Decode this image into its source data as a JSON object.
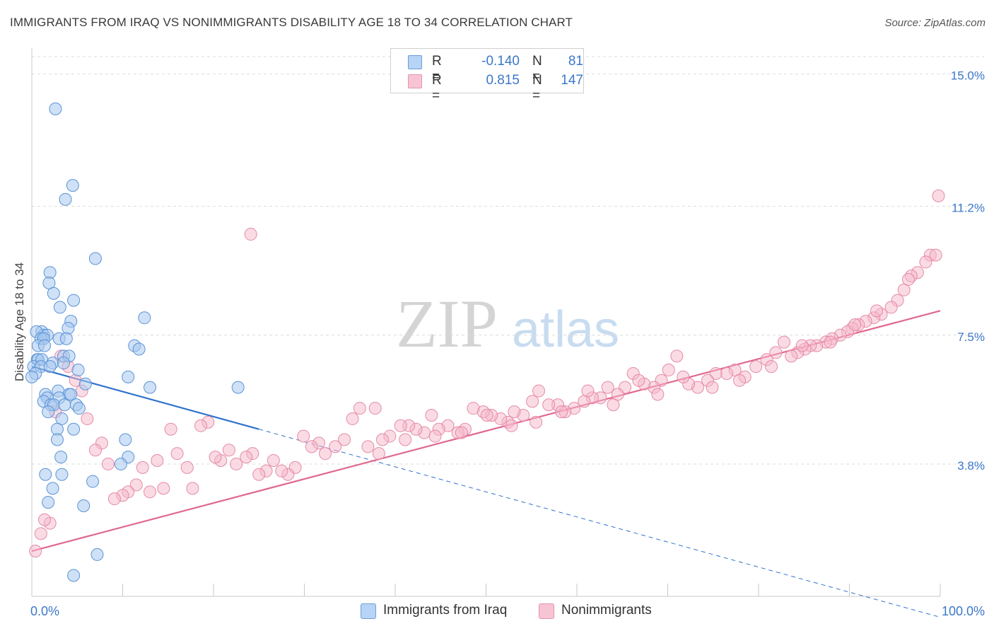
{
  "header": {
    "title": "IMMIGRANTS FROM IRAQ VS NONIMMIGRANTS DISABILITY AGE 18 TO 34 CORRELATION CHART",
    "source": "Source: ZipAtlas.com"
  },
  "colors": {
    "blue_fill": "#a8c8ef",
    "blue_stroke": "#5b93d6",
    "blue_line": "#2f72cc",
    "pink_fill": "#f5b8ca",
    "pink_stroke": "#e58aa8",
    "pink_line": "#e06890",
    "axis_label": "#3b78c8",
    "grid": "#dcdcdc"
  },
  "legend": {
    "rows": [
      {
        "r_label": "R =",
        "r_value": "-0.140",
        "n_label": "N =",
        "n_value": "81"
      },
      {
        "r_label": "R =",
        "r_value": "0.815",
        "n_label": "N =",
        "n_value": "147"
      }
    ]
  },
  "bottom_legend": {
    "items": [
      {
        "label": "Immigrants from Iraq"
      },
      {
        "label": "Nonimmigrants"
      }
    ]
  },
  "watermark": {
    "zip": "ZIP",
    "atlas": "atlas"
  },
  "chart_data": {
    "type": "scatter",
    "ylabel": "Disability Age 18 to 34",
    "xlim": [
      0,
      100
    ],
    "ylim": [
      0,
      15.5
    ],
    "x_tick_labels": [
      "0.0%",
      "100.0%"
    ],
    "y_ticks": [
      {
        "value": 3.8,
        "label": "3.8%"
      },
      {
        "value": 7.5,
        "label": "7.5%"
      },
      {
        "value": 11.2,
        "label": "11.2%"
      },
      {
        "value": 15.0,
        "label": "15.0%"
      }
    ],
    "grid": "horizontal dashed",
    "series": [
      {
        "name": "Immigrants from Iraq",
        "color": "blue",
        "trend": {
          "x0": 0,
          "y0": 6.6,
          "x1": 25,
          "y1": 4.8,
          "dash_to_x": 100
        },
        "points": [
          [
            2.6,
            14.0
          ],
          [
            4.5,
            11.8
          ],
          [
            3.7,
            11.4
          ],
          [
            7.0,
            9.7
          ],
          [
            2.0,
            9.3
          ],
          [
            1.9,
            9.0
          ],
          [
            2.4,
            8.7
          ],
          [
            4.6,
            8.5
          ],
          [
            3.1,
            8.3
          ],
          [
            12.4,
            8.0
          ],
          [
            4.3,
            7.9
          ],
          [
            4.0,
            7.7
          ],
          [
            1.1,
            7.6
          ],
          [
            1.3,
            7.5
          ],
          [
            1.7,
            7.5
          ],
          [
            0.5,
            7.6
          ],
          [
            1.0,
            7.4
          ],
          [
            1.3,
            7.4
          ],
          [
            3.0,
            7.4
          ],
          [
            3.8,
            7.4
          ],
          [
            0.7,
            7.2
          ],
          [
            1.4,
            7.2
          ],
          [
            11.3,
            7.2
          ],
          [
            11.8,
            7.1
          ],
          [
            3.5,
            6.9
          ],
          [
            4.1,
            6.9
          ],
          [
            0.6,
            6.8
          ],
          [
            0.7,
            6.8
          ],
          [
            1.1,
            6.8
          ],
          [
            2.3,
            6.7
          ],
          [
            3.5,
            6.7
          ],
          [
            0.2,
            6.6
          ],
          [
            1.0,
            6.6
          ],
          [
            2.0,
            6.6
          ],
          [
            5.1,
            6.5
          ],
          [
            0.4,
            6.4
          ],
          [
            10.6,
            6.3
          ],
          [
            0.0,
            6.3
          ],
          [
            5.9,
            6.1
          ],
          [
            13.0,
            6.0
          ],
          [
            22.7,
            6.0
          ],
          [
            2.9,
            5.9
          ],
          [
            1.5,
            5.8
          ],
          [
            4.1,
            5.8
          ],
          [
            4.3,
            5.8
          ],
          [
            1.7,
            5.7
          ],
          [
            3.0,
            5.7
          ],
          [
            1.3,
            5.6
          ],
          [
            2.1,
            5.5
          ],
          [
            2.4,
            5.5
          ],
          [
            3.6,
            5.5
          ],
          [
            4.9,
            5.5
          ],
          [
            5.2,
            5.4
          ],
          [
            1.8,
            5.3
          ],
          [
            3.3,
            5.1
          ],
          [
            2.8,
            4.8
          ],
          [
            4.6,
            4.8
          ],
          [
            2.8,
            4.5
          ],
          [
            10.3,
            4.5
          ],
          [
            3.2,
            4.0
          ],
          [
            10.6,
            4.0
          ],
          [
            9.8,
            3.8
          ],
          [
            1.5,
            3.5
          ],
          [
            3.3,
            3.5
          ],
          [
            6.7,
            3.3
          ],
          [
            2.3,
            3.1
          ],
          [
            1.8,
            2.7
          ],
          [
            5.7,
            2.6
          ],
          [
            7.2,
            1.2
          ],
          [
            4.6,
            0.6
          ]
        ]
      },
      {
        "name": "Nonimmigrants",
        "color": "pink",
        "trend": {
          "x0": 0,
          "y0": 1.3,
          "x1": 100,
          "y1": 8.2
        },
        "points": [
          [
            99.8,
            11.5
          ],
          [
            24.1,
            10.4
          ],
          [
            98.9,
            9.8
          ],
          [
            98.4,
            9.6
          ],
          [
            97.5,
            9.3
          ],
          [
            96.8,
            9.2
          ],
          [
            96.0,
            8.8
          ],
          [
            95.3,
            8.5
          ],
          [
            94.6,
            8.3
          ],
          [
            93.5,
            8.1
          ],
          [
            92.7,
            8.0
          ],
          [
            91.8,
            7.9
          ],
          [
            91.0,
            7.8
          ],
          [
            90.3,
            7.7
          ],
          [
            89.8,
            7.6
          ],
          [
            89.0,
            7.5
          ],
          [
            88.1,
            7.4
          ],
          [
            87.4,
            7.3
          ],
          [
            86.4,
            7.2
          ],
          [
            85.7,
            7.2
          ],
          [
            85.1,
            7.1
          ],
          [
            84.3,
            7.0
          ],
          [
            83.6,
            6.9
          ],
          [
            82.8,
            7.3
          ],
          [
            81.9,
            7.0
          ],
          [
            80.9,
            6.8
          ],
          [
            79.7,
            6.6
          ],
          [
            78.5,
            6.3
          ],
          [
            77.4,
            6.5
          ],
          [
            76.5,
            6.4
          ],
          [
            75.3,
            6.4
          ],
          [
            74.4,
            6.2
          ],
          [
            73.3,
            6.0
          ],
          [
            72.3,
            6.1
          ],
          [
            71.0,
            6.9
          ],
          [
            70.1,
            6.5
          ],
          [
            69.3,
            6.2
          ],
          [
            68.5,
            6.0
          ],
          [
            67.4,
            6.1
          ],
          [
            66.2,
            6.4
          ],
          [
            65.3,
            6.0
          ],
          [
            64.5,
            5.8
          ],
          [
            63.4,
            6.0
          ],
          [
            62.6,
            5.7
          ],
          [
            61.7,
            5.7
          ],
          [
            60.8,
            5.6
          ],
          [
            59.7,
            5.4
          ],
          [
            58.7,
            5.3
          ],
          [
            57.9,
            5.5
          ],
          [
            56.9,
            5.5
          ],
          [
            55.8,
            5.9
          ],
          [
            55.1,
            5.6
          ],
          [
            54.1,
            5.2
          ],
          [
            53.1,
            5.3
          ],
          [
            52.4,
            5.0
          ],
          [
            51.6,
            5.1
          ],
          [
            50.6,
            5.2
          ],
          [
            49.7,
            5.3
          ],
          [
            48.6,
            5.4
          ],
          [
            47.7,
            4.8
          ],
          [
            46.9,
            4.7
          ],
          [
            45.8,
            4.9
          ],
          [
            44.8,
            4.8
          ],
          [
            44.0,
            5.2
          ],
          [
            43.2,
            4.7
          ],
          [
            42.3,
            4.8
          ],
          [
            41.5,
            4.9
          ],
          [
            40.6,
            4.9
          ],
          [
            39.4,
            4.6
          ],
          [
            38.6,
            4.5
          ],
          [
            37.8,
            5.4
          ],
          [
            37.0,
            4.3
          ],
          [
            36.1,
            5.4
          ],
          [
            35.3,
            5.1
          ],
          [
            34.4,
            4.5
          ],
          [
            33.4,
            4.3
          ],
          [
            32.3,
            4.1
          ],
          [
            31.6,
            4.4
          ],
          [
            30.8,
            4.3
          ],
          [
            29.9,
            4.6
          ],
          [
            29.0,
            3.7
          ],
          [
            28.2,
            3.5
          ],
          [
            27.5,
            3.6
          ],
          [
            26.6,
            3.9
          ],
          [
            25.8,
            3.6
          ],
          [
            25.0,
            3.5
          ],
          [
            24.3,
            4.1
          ],
          [
            23.6,
            4.0
          ],
          [
            22.5,
            3.8
          ],
          [
            21.7,
            4.2
          ],
          [
            20.8,
            3.9
          ],
          [
            20.2,
            4.0
          ],
          [
            19.4,
            5.0
          ],
          [
            18.6,
            4.9
          ],
          [
            17.7,
            3.1
          ],
          [
            17.1,
            3.7
          ],
          [
            16.0,
            4.1
          ],
          [
            15.3,
            4.8
          ],
          [
            14.5,
            3.1
          ],
          [
            13.8,
            3.9
          ],
          [
            13.0,
            3.0
          ],
          [
            12.2,
            3.7
          ],
          [
            11.5,
            3.2
          ],
          [
            10.6,
            3.0
          ],
          [
            10.0,
            2.9
          ],
          [
            9.1,
            2.8
          ],
          [
            8.4,
            3.8
          ],
          [
            7.7,
            4.4
          ],
          [
            7.0,
            4.2
          ],
          [
            6.1,
            5.1
          ],
          [
            5.5,
            5.9
          ],
          [
            4.8,
            6.2
          ],
          [
            4.0,
            6.6
          ],
          [
            3.2,
            6.9
          ],
          [
            2.6,
            5.3
          ],
          [
            2.0,
            2.1
          ],
          [
            1.4,
            2.2
          ],
          [
            1.0,
            1.8
          ],
          [
            0.4,
            1.3
          ],
          [
            99.5,
            9.8
          ],
          [
            96.5,
            9.1
          ],
          [
            93.0,
            8.2
          ],
          [
            90.6,
            7.8
          ],
          [
            87.9,
            7.3
          ],
          [
            84.8,
            7.2
          ],
          [
            81.4,
            6.6
          ],
          [
            77.9,
            6.2
          ],
          [
            74.9,
            6.0
          ],
          [
            71.7,
            6.3
          ],
          [
            68.9,
            5.8
          ],
          [
            66.8,
            6.2
          ],
          [
            64.0,
            5.5
          ],
          [
            61.2,
            5.9
          ],
          [
            58.3,
            5.3
          ],
          [
            55.5,
            5.0
          ],
          [
            52.8,
            4.9
          ],
          [
            50.1,
            5.2
          ],
          [
            47.3,
            4.7
          ],
          [
            44.4,
            4.6
          ],
          [
            41.1,
            4.5
          ],
          [
            38.2,
            4.1
          ]
        ]
      }
    ]
  }
}
